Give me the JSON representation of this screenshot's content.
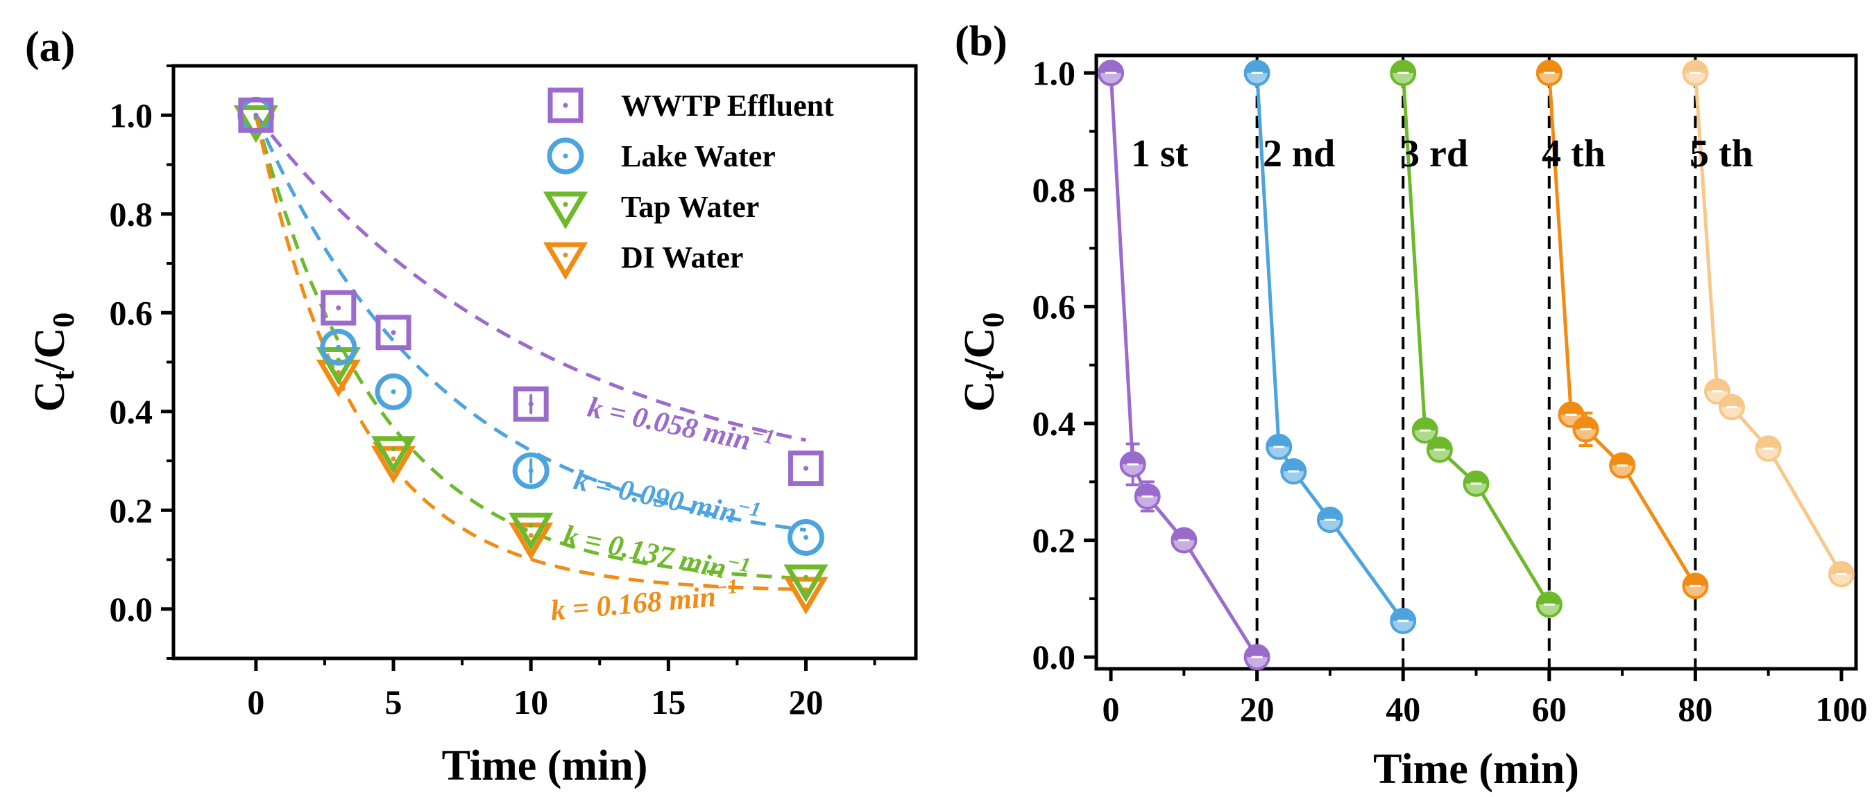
{
  "chart_data": [
    {
      "panel": "(a)",
      "type": "scatter",
      "xlabel": "Time (min)",
      "ylabel": "C",
      "ylabel_sub_1": "t",
      "ylabel_sep": "/C",
      "ylabel_sub_2": "0",
      "xlim": [
        -3,
        24
      ],
      "ylim": [
        -0.1,
        1.1
      ],
      "xticks": [
        0,
        5,
        10,
        15,
        20
      ],
      "xtick_labels": [
        "0",
        "5",
        "10",
        "15",
        "20"
      ],
      "yticks": [
        0.0,
        0.2,
        0.4,
        0.6,
        0.8,
        1.0
      ],
      "ytick_labels": [
        "0.0",
        "0.2",
        "0.4",
        "0.6",
        "0.8",
        "1.0"
      ],
      "legend_position": "top-right",
      "x": [
        0,
        3,
        5,
        10,
        20
      ],
      "series": [
        {
          "name": "WWTP Effluent",
          "marker": "square",
          "color": "#9B6BCC",
          "values": [
            1.0,
            0.61,
            0.56,
            0.415,
            0.285
          ],
          "errors": [
            0,
            0,
            0,
            0.02,
            0
          ],
          "k_label": "k = 0.058 min",
          "k_exp": "−1",
          "fit": {
            "k": 0.058,
            "c_inf": 0.22
          }
        },
        {
          "name": "Lake Water",
          "marker": "circle",
          "color": "#4DA3DD",
          "values": [
            1.0,
            0.53,
            0.44,
            0.28,
            0.145
          ],
          "errors": [
            0,
            0,
            0,
            0.025,
            0
          ],
          "k_label": "k = 0.090 min",
          "k_exp": "−1",
          "fit": {
            "k": 0.09,
            "c_inf": 0.11
          }
        },
        {
          "name": "Tap Water",
          "marker": "triangle",
          "color": "#6EB92B",
          "values": [
            0.99,
            0.5,
            0.32,
            0.165,
            0.06
          ],
          "errors": [
            0,
            0,
            0,
            0,
            0
          ],
          "k_label": "k = 0.137 min",
          "k_exp": "−1",
          "fit": {
            "k": 0.137,
            "c_inf": 0.05
          }
        },
        {
          "name": "DI Water",
          "marker": "triangle",
          "color": "#F08C14",
          "values": [
            0.99,
            0.475,
            0.3,
            0.145,
            0.035
          ],
          "errors": [
            0,
            0,
            0,
            0,
            0
          ],
          "k_label": "k = 0.168 min",
          "k_exp": "−1",
          "fit": {
            "k": 0.168,
            "c_inf": 0.035
          }
        }
      ]
    },
    {
      "panel": "(b)",
      "type": "line",
      "xlabel": "Time (min)",
      "ylabel": "C",
      "ylabel_sub_1": "t",
      "ylabel_sep": "/C",
      "ylabel_sub_2": "0",
      "xlim": [
        -2,
        102
      ],
      "ylim": [
        -0.02,
        1.03
      ],
      "xticks": [
        0,
        20,
        40,
        60,
        80,
        100
      ],
      "xtick_labels": [
        "0",
        "20",
        "40",
        "60",
        "80",
        "100"
      ],
      "yticks": [
        0.0,
        0.2,
        0.4,
        0.6,
        0.8,
        1.0
      ],
      "ytick_labels": [
        "0.0",
        "0.2",
        "0.4",
        "0.6",
        "0.8",
        "1.0"
      ],
      "dividers": [
        20,
        40,
        60,
        80
      ],
      "series": [
        {
          "name": "1 st",
          "color": "#9B6BCC",
          "x": [
            0,
            3,
            5,
            10,
            20
          ],
          "values": [
            1.0,
            0.33,
            0.275,
            0.2,
            0.0
          ],
          "errors": [
            0,
            0.035,
            0.025,
            0,
            0
          ]
        },
        {
          "name": "2 nd",
          "color": "#4DA3DD",
          "x": [
            20,
            23,
            25,
            30,
            40
          ],
          "values": [
            1.0,
            0.36,
            0.318,
            0.235,
            0.062
          ],
          "errors": [
            0,
            0,
            0,
            0,
            0
          ]
        },
        {
          "name": "3 rd",
          "color": "#6EB92B",
          "x": [
            40,
            43,
            45,
            50,
            60
          ],
          "values": [
            1.0,
            0.388,
            0.355,
            0.297,
            0.09
          ],
          "errors": [
            0,
            0,
            0,
            0,
            0
          ]
        },
        {
          "name": "4 th",
          "color": "#F08C14",
          "x": [
            60,
            63,
            65,
            70,
            80
          ],
          "values": [
            1.0,
            0.415,
            0.39,
            0.328,
            0.122
          ],
          "errors": [
            0,
            0,
            0.028,
            0,
            0
          ]
        },
        {
          "name": "5 th",
          "color": "#F8C88A",
          "x": [
            80,
            83,
            85,
            90,
            100
          ],
          "values": [
            1.0,
            0.455,
            0.428,
            0.357,
            0.142
          ],
          "errors": [
            0,
            0,
            0,
            0,
            0
          ]
        }
      ]
    }
  ]
}
